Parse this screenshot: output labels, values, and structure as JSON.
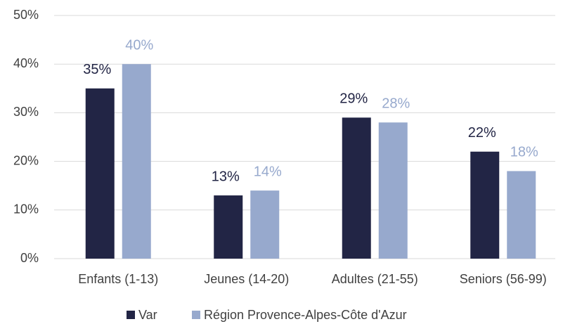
{
  "chart_data": {
    "type": "bar",
    "categories": [
      "Enfants (1-13)",
      "Jeunes (14-20)",
      "Adultes (21-55)",
      "Seniors (56-99)"
    ],
    "series": [
      {
        "name": "Var",
        "color": "#222545",
        "values": [
          35,
          13,
          29,
          22
        ],
        "value_labels": [
          "35%",
          "13%",
          "29%",
          "22%"
        ]
      },
      {
        "name": "Région Provence-Alpes-Côte d'Azur",
        "color": "#97a9cd",
        "values": [
          40,
          14,
          28,
          18
        ],
        "value_labels": [
          "40%",
          "14%",
          "28%",
          "18%"
        ]
      }
    ],
    "ylim": [
      0,
      50
    ],
    "yticks": [
      {
        "value": 0,
        "label": "0%"
      },
      {
        "value": 10,
        "label": "10%"
      },
      {
        "value": 20,
        "label": "20%"
      },
      {
        "value": 30,
        "label": "30%"
      },
      {
        "value": 40,
        "label": "40%"
      },
      {
        "value": 50,
        "label": "50%"
      }
    ],
    "grid": true,
    "legend": "bottom"
  }
}
